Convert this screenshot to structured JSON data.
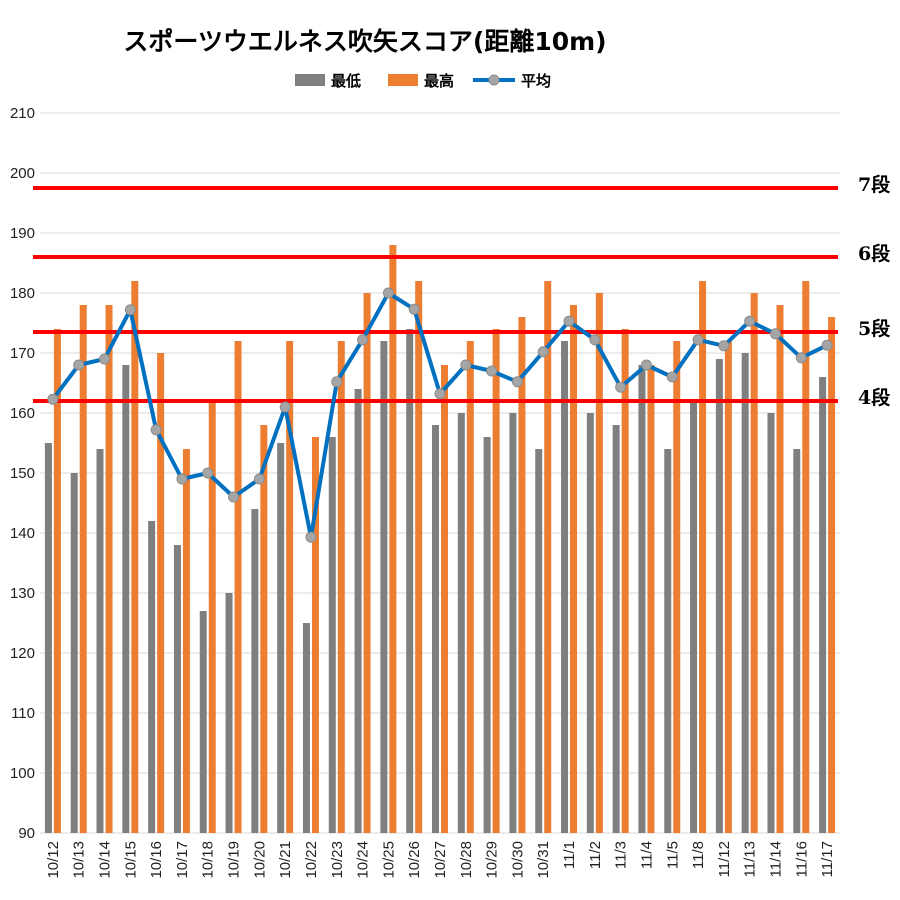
{
  "chart_data": {
    "type": "bar",
    "title": "スポーツウエルネス吹矢スコア(距離10m)",
    "xlabel": "",
    "ylabel": "",
    "ylim": [
      90,
      210
    ],
    "ytick_step": 10,
    "grid": true,
    "legend_position": "top-center",
    "categories": [
      "10/12",
      "10/13",
      "10/14",
      "10/15",
      "10/16",
      "10/17",
      "10/18",
      "10/19",
      "10/20",
      "10/21",
      "10/22",
      "10/23",
      "10/24",
      "10/25",
      "10/26",
      "10/27",
      "10/28",
      "10/29",
      "10/30",
      "10/31",
      "11/1",
      "11/2",
      "11/3",
      "11/4",
      "11/5",
      "11/8",
      "11/12",
      "11/13",
      "11/14",
      "11/16",
      "11/17"
    ],
    "series": [
      {
        "name": "最低",
        "type": "bar",
        "color": "#7f7f7f",
        "values": [
          155,
          150,
          154,
          168,
          142,
          138,
          127,
          130,
          144,
          155,
          125,
          156,
          164,
          172,
          174,
          158,
          160,
          156,
          160,
          154,
          172,
          160,
          158,
          168,
          154,
          162,
          169,
          170,
          160,
          154,
          166
        ]
      },
      {
        "name": "最高",
        "type": "bar",
        "color": "#ed7d31",
        "values": [
          174,
          178,
          178,
          182,
          170,
          154,
          162,
          172,
          158,
          172,
          156,
          172,
          180,
          188,
          182,
          168,
          172,
          174,
          176,
          182,
          178,
          180,
          174,
          168,
          172,
          182,
          172,
          180,
          178,
          182,
          176
        ]
      },
      {
        "name": "平均",
        "type": "line",
        "color": "#0070c0",
        "marker_color": "#a5a5a5",
        "values": [
          162.3,
          168,
          169,
          177.2,
          157.2,
          149,
          150,
          146,
          149,
          161,
          139.3,
          165.2,
          172.2,
          180,
          177.3,
          163.2,
          168,
          167,
          165.2,
          170.2,
          175.3,
          172.2,
          164.3,
          168,
          166,
          172.2,
          171.2,
          175.3,
          173.2,
          169.2,
          171.3
        ]
      }
    ],
    "reference_lines": [
      {
        "label": "7段",
        "value": 197.5,
        "color": "#ff0000"
      },
      {
        "label": "6段",
        "value": 186,
        "color": "#ff0000"
      },
      {
        "label": "5段",
        "value": 173.5,
        "color": "#ff0000"
      },
      {
        "label": "4段",
        "value": 162,
        "color": "#ff0000"
      }
    ],
    "gridline_color": "#d9d9d9"
  }
}
